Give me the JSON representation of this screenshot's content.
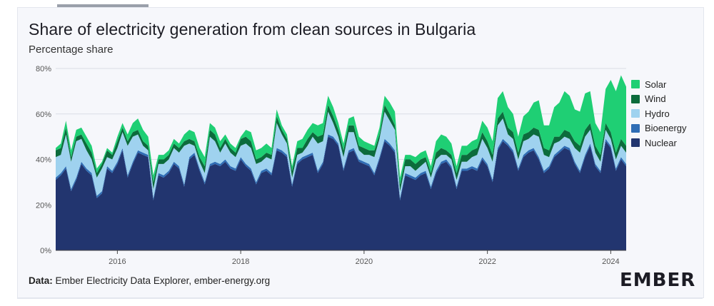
{
  "header": {
    "tab_label": ""
  },
  "title": "Share of electricity generation from clean sources in Bulgaria",
  "subtitle": "Percentage share",
  "source": {
    "prefix": "Data:",
    "text": "Ember Electricity Data Explorer, ember-energy.org"
  },
  "logo": "EMBER",
  "colors": {
    "Solar": "#1fcf74",
    "Wind": "#0c6b3c",
    "Hydro": "#9fd2ef",
    "Bioenergy": "#2f6db5",
    "Nuclear": "#22356f",
    "grid": "#d9dde6",
    "axis": "#444444"
  },
  "chart_data": {
    "type": "area",
    "stacked": true,
    "x_start": "2015-01",
    "x_end": "2025-06",
    "ylim": [
      0,
      80
    ],
    "yticks": [
      "0%",
      "20%",
      "40%",
      "60%",
      "80%"
    ],
    "xticks": [
      "2016",
      "2018",
      "2020",
      "2022",
      "2024"
    ],
    "legend_order": [
      "Solar",
      "Wind",
      "Hydro",
      "Bioenergy",
      "Nuclear"
    ],
    "legend_position": "right",
    "series": [
      {
        "name": "Nuclear",
        "values": [
          31,
          33,
          36,
          26,
          31,
          38,
          35,
          33,
          23,
          25,
          36,
          34,
          38,
          44,
          32,
          38,
          43,
          42,
          41,
          22,
          33,
          32,
          34,
          38,
          36,
          28,
          40,
          42,
          35,
          29,
          37,
          38,
          37,
          39,
          36,
          35,
          40,
          37,
          35,
          29,
          34,
          35,
          33,
          44,
          43,
          41,
          28,
          38,
          40,
          41,
          42,
          34,
          38,
          50,
          49,
          46,
          35,
          43,
          44,
          39,
          38,
          37,
          33,
          40,
          48,
          46,
          43,
          22,
          33,
          32,
          31,
          33,
          34,
          27,
          34,
          38,
          39,
          36,
          27,
          35,
          35,
          36,
          35,
          40,
          37,
          30,
          44,
          48,
          46,
          43,
          35,
          41,
          43,
          44,
          40,
          34,
          36,
          41,
          43,
          45,
          44,
          38,
          34,
          41,
          46,
          37,
          34,
          48,
          45,
          35,
          40,
          37
        ]
      },
      {
        "name": "Bioenergy",
        "values": [
          1,
          1,
          1,
          1,
          1,
          1,
          1,
          1,
          1,
          1,
          1,
          1,
          1,
          1,
          1,
          1,
          1,
          1,
          1,
          1,
          1,
          1,
          1,
          1,
          1,
          1,
          1,
          1,
          1,
          1,
          1,
          1,
          1,
          1,
          1,
          1,
          1,
          1,
          1,
          1,
          1,
          1,
          1,
          1,
          1,
          1,
          1,
          1,
          1,
          1,
          1,
          1,
          1,
          1,
          1,
          1,
          1,
          1,
          1,
          1,
          1,
          1,
          1,
          1,
          1,
          1,
          1,
          1,
          1,
          1,
          1,
          1,
          1,
          1,
          1,
          1,
          1,
          1,
          1,
          1,
          1,
          1,
          1,
          1,
          1,
          1,
          1,
          1,
          1,
          1,
          1,
          1,
          1,
          1,
          1,
          1,
          1,
          1,
          1,
          1,
          1,
          1,
          1,
          1,
          1,
          1,
          1,
          1,
          1,
          1,
          1,
          1
        ]
      },
      {
        "name": "Hydro",
        "values": [
          9,
          8,
          14,
          12,
          16,
          10,
          8,
          6,
          8,
          10,
          4,
          5,
          6,
          7,
          13,
          11,
          7,
          3,
          2,
          4,
          4,
          5,
          5,
          6,
          6,
          17,
          6,
          3,
          3,
          4,
          12,
          9,
          5,
          7,
          6,
          5,
          5,
          9,
          9,
          8,
          4,
          5,
          6,
          11,
          7,
          5,
          3,
          3,
          2,
          4,
          7,
          12,
          9,
          10,
          6,
          3,
          5,
          8,
          7,
          4,
          3,
          4,
          7,
          8,
          12,
          10,
          9,
          3,
          3,
          4,
          3,
          3,
          4,
          4,
          5,
          3,
          2,
          3,
          3,
          3,
          3,
          4,
          6,
          8,
          7,
          8,
          10,
          9,
          4,
          5,
          4,
          6,
          5,
          6,
          9,
          7,
          4,
          5,
          4,
          4,
          4,
          6,
          8,
          8,
          6,
          5,
          4,
          4,
          3,
          4,
          5,
          5
        ]
      },
      {
        "name": "Wind",
        "values": [
          3,
          3,
          3,
          2,
          2,
          2,
          3,
          3,
          2,
          2,
          3,
          2,
          3,
          2,
          2,
          2,
          2,
          2,
          2,
          3,
          2,
          2,
          2,
          2,
          2,
          2,
          2,
          2,
          2,
          3,
          3,
          3,
          2,
          2,
          2,
          2,
          3,
          3,
          3,
          2,
          2,
          2,
          2,
          3,
          2,
          2,
          3,
          3,
          2,
          3,
          2,
          3,
          3,
          3,
          3,
          3,
          3,
          3,
          3,
          2,
          3,
          2,
          3,
          2,
          3,
          3,
          2,
          3,
          3,
          3,
          3,
          3,
          2,
          2,
          3,
          3,
          2,
          2,
          3,
          3,
          3,
          3,
          3,
          3,
          3,
          3,
          3,
          3,
          3,
          3,
          3,
          3,
          3,
          3,
          3,
          3,
          3,
          3,
          2,
          3,
          3,
          3,
          3,
          3,
          3,
          3,
          3,
          3,
          3,
          3,
          3,
          3
        ]
      },
      {
        "name": "Solar",
        "values": [
          1,
          2,
          3,
          3,
          3,
          3,
          3,
          3,
          2,
          1,
          1,
          1,
          2,
          2,
          3,
          4,
          5,
          5,
          4,
          3,
          2,
          2,
          2,
          2,
          2,
          3,
          4,
          4,
          4,
          4,
          3,
          3,
          3,
          2,
          2,
          2,
          1,
          3,
          4,
          4,
          4,
          4,
          3,
          3,
          2,
          2,
          2,
          3,
          4,
          4,
          4,
          5,
          5,
          4,
          4,
          3,
          3,
          3,
          4,
          4,
          3,
          3,
          2,
          3,
          4,
          5,
          6,
          3,
          2,
          2,
          3,
          3,
          3,
          3,
          5,
          6,
          6,
          5,
          3,
          4,
          4,
          4,
          4,
          5,
          6,
          6,
          9,
          9,
          9,
          8,
          7,
          8,
          9,
          11,
          13,
          10,
          11,
          13,
          15,
          17,
          16,
          14,
          15,
          16,
          14,
          10,
          10,
          15,
          23,
          27,
          28,
          26
        ]
      }
    ]
  }
}
